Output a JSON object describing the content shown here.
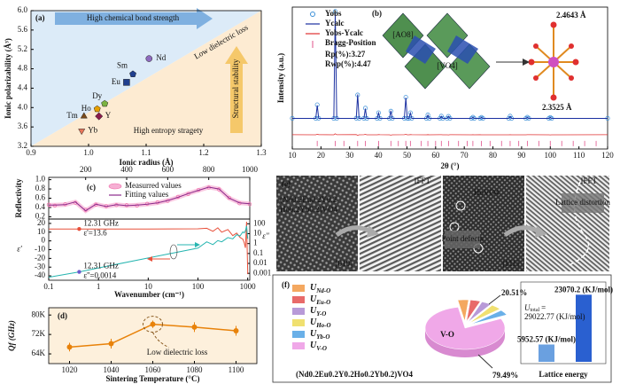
{
  "chart_data": [
    {
      "type": "scatter",
      "panel": "(a)",
      "x_label": "Ionic radius (Å)",
      "y_label": "Ionic polarizability (Å³)",
      "xlim": [
        0.9,
        1.3
      ],
      "xticks": [
        0.9,
        {
          "value": 1,
          "label": "1.0"
        },
        1.1,
        1.2,
        1.3
      ],
      "ylim": [
        3.2,
        6.0
      ],
      "yticks": [
        3.2,
        3.6,
        {
          "value": 4,
          "label": "4.0"
        },
        4.4,
        4.8,
        5.2,
        5.6,
        {
          "value": 6,
          "label": "6.0"
        }
      ],
      "labels": [
        "Nd",
        "Sm",
        "Eu",
        "Dy",
        "Ho",
        "Y",
        "Tm",
        "Yb"
      ],
      "x": [
        1.105,
        1.077,
        1.066,
        1.028,
        1.015,
        1.018,
        0.992,
        0.988
      ],
      "values": [
        5.01,
        4.69,
        4.52,
        4.08,
        3.97,
        3.82,
        3.82,
        3.52
      ],
      "colors": [
        "#8e6bbf",
        "#1f3f8f",
        "#1f3f8f",
        "#7cb342",
        "#e6a000",
        "#8b1a4a",
        "#7a4a1a",
        "#e8765a"
      ],
      "markers": [
        "circle",
        "pentagon",
        "square",
        "pentagon",
        "pentagon",
        "diamond",
        "triangle",
        "triangle-down"
      ],
      "annotations": [
        "High chemical bond strength",
        "Low dielectric loss",
        "Structural stability",
        "High entropy stragety"
      ]
    },
    {
      "type": "refinement",
      "panel": "(b)",
      "x_label": "2θ (°)",
      "y_label": "Intensity (a.u.)",
      "xlim": [
        10,
        120
      ],
      "xticks": [
        10,
        20,
        30,
        40,
        50,
        60,
        70,
        80,
        90,
        100,
        110,
        120
      ],
      "ylim": [
        -25,
        105
      ],
      "x": [
        10,
        18.2,
        18.7,
        19.2,
        24.5,
        25,
        25.5,
        32.3,
        32.8,
        33.3,
        35,
        35.5,
        36,
        39.6,
        40.1,
        40.6,
        43.9,
        44.4,
        44.9,
        49.1,
        49.6,
        50.1,
        50.7,
        51.2,
        51.7,
        56.8,
        57.3,
        57.8,
        61.5,
        62,
        62.5,
        64,
        64.5,
        65,
        72.5,
        73,
        73.5,
        75.5,
        76,
        76.5,
        85.5,
        86,
        86.5,
        91.5,
        92,
        92.5,
        99.5,
        100,
        100.5,
        120
      ],
      "series": [
        {
          "name": "Yobs",
          "color": "#3a8fd8",
          "values": [
            3.1,
            3,
            15.5,
            3.2,
            3,
            101,
            3.1,
            3.2,
            24.5,
            3,
            3.1,
            12.4,
            3,
            3,
            8.2,
            3.1,
            3,
            9.7,
            3,
            3.1,
            22.4,
            3,
            3,
            8.2,
            3.1,
            3,
            6.2,
            3,
            3.1,
            5.1,
            3,
            3,
            4.9,
            3.1,
            3,
            4.1,
            3,
            3.1,
            4,
            3,
            3,
            5.1,
            3,
            3,
            4.1,
            3.1,
            3,
            3.9,
            3,
            3.1
          ]
        },
        {
          "name": "Ycalc",
          "color": "#1a2fa0",
          "values": [
            3,
            3,
            15,
            3,
            3,
            100,
            3,
            3,
            25,
            3,
            3,
            12,
            3,
            3,
            8,
            3,
            3,
            10,
            3,
            3,
            22,
            3,
            3,
            8,
            3,
            3,
            6,
            3,
            3,
            5,
            3,
            3,
            5,
            3,
            3,
            4,
            3,
            3,
            4,
            3,
            3,
            5,
            3,
            3,
            4,
            3,
            3,
            4,
            3,
            3
          ]
        },
        {
          "name": "Yobs-Ycalc",
          "color": "#e03030",
          "values": [
            -11.9,
            -12,
            -11.5,
            -11.8,
            -12,
            -11,
            -11.9,
            -11.8,
            -12.5,
            -12,
            -11.9,
            -11.6,
            -12,
            -12,
            -11.8,
            -11.9,
            -12,
            -12.3,
            -12,
            -11.9,
            -11.6,
            -12,
            -12,
            -11.8,
            -11.9,
            -12,
            -11.8,
            -12,
            -11.9,
            -11.9,
            -12,
            -12,
            -12.1,
            -11.9,
            -12,
            -11.9,
            -12,
            -11.9,
            -12,
            -12,
            -12,
            -11.9,
            -12,
            -12,
            -11.9,
            -11.9,
            -12,
            -12.1,
            -12,
            -11.9
          ]
        }
      ],
      "bragg": {
        "name": "Bragg-Position",
        "color": "#e0508a",
        "level": -20,
        "x": [
          18.7,
          25,
          28,
          32.8,
          35.5,
          40.1,
          44.4,
          47,
          49.6,
          51.2,
          55,
          57.3,
          60,
          62,
          64.5,
          68,
          71,
          73,
          76,
          79,
          83,
          86,
          89,
          92,
          96,
          100,
          104,
          108,
          112,
          116
        ]
      },
      "annotations": [
        "Rp(%):3.27",
        "Rwp(%):4.47",
        "2.4643 Å",
        "2.3525 Å",
        "[AO8]",
        "[VO4]"
      ]
    },
    {
      "type": "line",
      "panel": "(c)",
      "y_label": "Reflectivity",
      "xlim": [
        20,
        1000
      ],
      "xticks": [
        200,
        400,
        600,
        800,
        1000
      ],
      "ylim": [
        0.15,
        1.05
      ],
      "yticks": [
        0.2,
        0.4,
        0.6,
        0.8,
        {
          "value": 1,
          "label": "1.0"
        }
      ],
      "x": [
        20,
        50,
        100,
        150,
        200,
        250,
        300,
        350,
        400,
        450,
        500,
        550,
        600,
        650,
        700,
        750,
        800,
        850,
        900,
        950,
        1000
      ],
      "series": [
        {
          "name": "Measurred values",
          "color": "#f06aa8",
          "marker": "circle",
          "values": [
            0.46,
            0.44,
            0.47,
            0.5,
            0.35,
            0.46,
            0.43,
            0.45,
            0.45,
            0.44,
            0.48,
            0.51,
            0.54,
            0.63,
            0.69,
            0.78,
            0.83,
            0.79,
            0.61,
            0.49,
            0.47
          ]
        },
        {
          "name": "Fitting values",
          "color": "#8b2a8b",
          "values": [
            0.45,
            0.45,
            0.46,
            0.52,
            0.33,
            0.47,
            0.42,
            0.46,
            0.44,
            0.45,
            0.47,
            0.5,
            0.55,
            0.62,
            0.7,
            0.77,
            0.84,
            0.8,
            0.6,
            0.5,
            0.48
          ]
        }
      ]
    },
    {
      "type": "dual-log",
      "x_label": "Wavenumber (cm⁻¹)",
      "y_label": "ε'",
      "y2_label": "ε''",
      "xscale": "log",
      "xlim": [
        0.1,
        1100
      ],
      "xticks": [
        0.1,
        1,
        10,
        100,
        1000
      ],
      "ylim": [
        -45,
        25
      ],
      "yticks": [
        -40,
        -30,
        -20,
        -10,
        0,
        10,
        20
      ],
      "y2scale": "log",
      "y2lim": [
        0.0002,
        300
      ],
      "y2ticks": [
        0.001,
        0.01,
        0.1,
        1,
        10,
        100
      ],
      "x": [
        0.1,
        0.41,
        1,
        10,
        100,
        150,
        200,
        250,
        300,
        400,
        500,
        600,
        700,
        800,
        850,
        900,
        950,
        1000
      ],
      "series": [
        {
          "color": "#e8503a",
          "values": [
            13.6,
            13.6,
            13.6,
            13.6,
            13.8,
            14.5,
            11,
            15,
            10,
            13,
            6,
            9,
            4,
            2,
            -2,
            -8,
            22,
            -38
          ]
        },
        {
          "color": "#26b5b0",
          "axis": "y2",
          "values": [
            0.0004,
            0.0014,
            0.0035,
            0.035,
            0.35,
            1.5,
            0.8,
            2,
            1.5,
            4,
            3,
            8,
            6,
            15,
            12,
            20,
            60,
            3
          ]
        }
      ],
      "points": [
        {
          "x": 0.41,
          "value": 13.6,
          "axis": "y",
          "color": "#e8503a",
          "label": "ε'=13.6",
          "note": "12.31 GHz"
        },
        {
          "x": 0.41,
          "value": 0.0014,
          "axis": "y2",
          "color": "#6a5acd",
          "label": "ε''=0.0014",
          "note": "12.31 GHz"
        }
      ]
    },
    {
      "type": "errorbar",
      "panel": "(d)",
      "x_label": "Sintering Temperature (°C)",
      "y_label": "Qf (GHz)",
      "xlim": [
        1010,
        1110
      ],
      "xticks": [
        1020,
        1040,
        1060,
        1080,
        1100
      ],
      "ylim": [
        60000,
        83000
      ],
      "yticks": [
        {
          "value": 64000,
          "label": "64K"
        },
        {
          "value": 72000,
          "label": "72K"
        },
        {
          "value": 80000,
          "label": "80K"
        }
      ],
      "x": [
        1020,
        1040,
        1060,
        1080,
        1100
      ],
      "values": [
        66800,
        68200,
        76200,
        75000,
        73500
      ],
      "errors": [
        1800,
        2000,
        1500,
        2000,
        2000
      ],
      "color": "#e8820a",
      "annotation": "Low dielectric loss"
    },
    {
      "type": "pie",
      "panel": "(f)",
      "formula": "(Nd0.2Eu0.2Y0.2Ho0.2Yb0.2)VO4",
      "legend": [
        {
          "symbol": "U",
          "subscript": "Nd-O"
        },
        {
          "symbol": "U",
          "subscript": "Eu-O"
        },
        {
          "symbol": "U",
          "subscript": "Y-O"
        },
        {
          "symbol": "U",
          "subscript": "Ho-O"
        },
        {
          "symbol": "U",
          "subscript": "Yb-O"
        },
        {
          "symbol": "U",
          "subscript": "V-O"
        }
      ],
      "values": [
        4.3,
        4.1,
        3.9,
        4.2,
        4.01,
        79.49
      ],
      "value_labels": [
        null,
        null,
        null,
        null,
        null,
        "79.49%"
      ],
      "group_label": "20.51%",
      "slice_label": "V-O",
      "colors": [
        "#f4a860",
        "#e86a6a",
        "#b89ad8",
        "#f0e070",
        "#6ab0e8",
        "#f0a8e8"
      ]
    },
    {
      "type": "bar",
      "title": "Lattice energy",
      "values": [
        5952.57,
        23070.2
      ],
      "value_labels": [
        "5952.57 (KJ/mol)",
        "23070.2 (KJ/mol)"
      ],
      "colors": [
        "#6aa0e0",
        "#2a60d0"
      ],
      "ylim": [
        0,
        25000
      ],
      "annotation": {
        "symbol": "U",
        "subscript": "total",
        "equals": "=",
        "text": "29022.77 (KJ/mol)"
      }
    }
  ],
  "tem": {
    "panel": "(e)",
    "formula_lines": [
      "(Nd0.2Eu0.2Y0.2",
      "Ho0.2Yb0.2)VO4"
    ],
    "images": [
      {
        "caption": "[010]"
      },
      {
        "caption": "IFFT"
      },
      {
        "caption": "[111]",
        "label": "HoVO4",
        "note": "Point defects"
      },
      {
        "caption": "IFFT",
        "note": "Lattice distortion"
      }
    ]
  }
}
